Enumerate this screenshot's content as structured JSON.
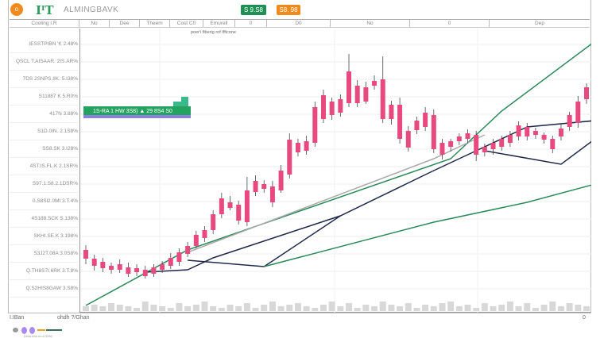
{
  "header": {
    "logo_letter": "o",
    "brand_mark": "IᴵT",
    "brand_name": "ALMINGBAVK",
    "badge_green": "S 9.S8",
    "badge_orange": "S8. 98",
    "colors": {
      "green": "#1e8f55",
      "orange": "#f08a1c"
    }
  },
  "columns": [
    "Cooling I.R",
    "No",
    "Dee",
    "Theem",
    "Cost C0",
    "Emurell",
    "0",
    "D0",
    "No",
    "0",
    "Dep"
  ],
  "subheader": "poer'i fiberig  rof Ifficone",
  "price_labels": [
    "IESSTPIBN 'K 2.48%",
    "QSCL T.AISAAR. 2IS.AR%",
    "7DS 2SNPS.IIK. 5.I38%",
    "S11887 K 5.R0%",
    "417N 3.88%",
    "S1D.0IN. 2.1S8%",
    "SS8.SK 3.I28%",
    "4ST.IS.FL.K 2.1SR%",
    "S97.1.S8.2.1DSR%",
    "0.S8Sl2.0MI 3.T.4%",
    "4S188.SCK S.138%",
    "SKHI.SE.K 3.198%",
    "S3J2T.08A 3.0S8%",
    "Q.TH8S7I.6RK 3.T.8%",
    "Q.S2HIS8GAW 3.S8%"
  ],
  "banner": {
    "text": "1S-RA 1 HW 3S8) ▲ 29 8S4 S0",
    "colors": {
      "bg": "#23a35f",
      "underline": "#8d7ee0"
    }
  },
  "footer": {
    "left": "I.IBan",
    "mid": "ohdh ?/Ghan",
    "right": "0",
    "legend_caption": "Dess Ans no A 3280"
  },
  "legend_colors": [
    "#999999",
    "#a98af0",
    "#a98af0",
    "#f0a020",
    "#3c6e5a",
    "#3c6e5a"
  ],
  "chart_data": {
    "type": "candlestick",
    "up_color": "#e84a7f",
    "wick_color": "#444444",
    "ylim": [
      0,
      350
    ],
    "candles": [
      [
        78,
        67,
        84,
        60
      ],
      [
        67,
        58,
        72,
        52
      ],
      [
        63,
        55,
        68,
        50
      ],
      [
        58,
        53,
        62,
        48
      ],
      [
        60,
        53,
        66,
        49
      ],
      [
        56,
        48,
        62,
        44
      ],
      [
        55,
        50,
        60,
        45
      ],
      [
        53,
        45,
        58,
        42
      ],
      [
        56,
        48,
        60,
        44
      ],
      [
        60,
        53,
        64,
        49
      ],
      [
        68,
        58,
        74,
        54
      ],
      [
        75,
        63,
        80,
        58
      ],
      [
        83,
        73,
        88,
        69
      ],
      [
        97,
        83,
        102,
        80
      ],
      [
        103,
        93,
        108,
        88
      ],
      [
        123,
        103,
        128,
        98
      ],
      [
        143,
        123,
        150,
        118
      ],
      [
        138,
        131,
        146,
        128
      ],
      [
        135,
        115,
        140,
        110
      ],
      [
        153,
        113,
        170,
        108
      ],
      [
        165,
        151,
        172,
        146
      ],
      [
        161,
        155,
        166,
        150
      ],
      [
        158,
        138,
        165,
        132
      ],
      [
        178,
        153,
        185,
        150
      ],
      [
        217,
        173,
        225,
        168
      ],
      [
        213,
        201,
        218,
        196
      ],
      [
        215,
        203,
        222,
        198
      ],
      [
        258,
        213,
        265,
        208
      ],
      [
        273,
        243,
        280,
        238
      ],
      [
        265,
        248,
        270,
        242
      ],
      [
        268,
        251,
        274,
        246
      ],
      [
        303,
        263,
        325,
        258
      ],
      [
        285,
        263,
        292,
        258
      ],
      [
        283,
        265,
        290,
        262
      ],
      [
        291,
        285,
        298,
        280
      ],
      [
        293,
        243,
        322,
        238
      ],
      [
        261,
        243,
        266,
        236
      ],
      [
        261,
        218,
        270,
        212
      ],
      [
        228,
        207,
        234,
        202
      ],
      [
        241,
        229,
        246,
        224
      ],
      [
        251,
        233,
        258,
        228
      ],
      [
        248,
        205,
        255,
        200
      ],
      [
        213,
        198,
        218,
        192
      ],
      [
        215,
        208,
        218,
        202
      ],
      [
        221,
        215,
        225,
        210
      ],
      [
        225,
        218,
        230,
        212
      ],
      [
        223,
        198,
        228,
        190
      ],
      [
        208,
        201,
        212,
        196
      ],
      [
        213,
        205,
        218,
        198
      ],
      [
        218,
        208,
        222,
        203
      ],
      [
        223,
        213,
        228,
        208
      ],
      [
        235,
        221,
        240,
        216
      ],
      [
        233,
        221,
        238,
        216
      ],
      [
        228,
        223,
        232,
        218
      ],
      [
        223,
        217,
        226,
        212
      ],
      [
        218,
        205,
        222,
        200
      ],
      [
        231,
        221,
        236,
        216
      ],
      [
        248,
        233,
        252,
        228
      ],
      [
        265,
        238,
        272,
        232
      ],
      [
        283,
        268,
        288,
        262
      ]
    ],
    "series": [
      {
        "color": "#2a8a5a",
        "points": [
          [
            0,
            8
          ],
          [
            12,
            78
          ],
          [
            43,
            193
          ],
          [
            49,
            253
          ],
          [
            60,
            341
          ]
        ]
      },
      {
        "color": "#1f2a4a",
        "points": [
          [
            7,
            50
          ],
          [
            12,
            53
          ],
          [
            15,
            68
          ],
          [
            30,
            121
          ],
          [
            41,
            178
          ],
          [
            45,
            198
          ],
          [
            52,
            233
          ],
          [
            60,
            241
          ]
        ]
      },
      {
        "color": "#1f2a4a",
        "points": [
          [
            12,
            65
          ],
          [
            21,
            57
          ],
          [
            30,
            121
          ]
        ]
      },
      {
        "color": "#1f2a4a",
        "points": [
          [
            47,
            203
          ],
          [
            56,
            186
          ],
          [
            60,
            218
          ]
        ]
      },
      {
        "color": "#aaaaaa",
        "points": [
          [
            12,
            75
          ],
          [
            41,
            193
          ],
          [
            47,
            223
          ]
        ]
      },
      {
        "color": "#2a8a5a",
        "points": [
          [
            21,
            57
          ],
          [
            41,
            113
          ],
          [
            52,
            138
          ],
          [
            60,
            161
          ]
        ]
      }
    ],
    "volume": [
      3,
      4,
      3,
      5,
      4,
      3,
      2,
      6,
      4,
      3,
      2,
      5,
      3,
      4,
      6,
      3,
      2,
      4,
      3,
      5,
      2,
      4,
      6,
      3,
      4,
      5,
      3,
      2,
      4,
      6,
      3,
      5,
      2,
      4,
      3,
      6,
      4,
      3,
      5,
      2,
      4,
      3,
      5,
      6,
      3,
      4,
      2,
      5,
      3,
      4,
      6,
      3,
      5,
      2,
      4,
      6,
      3,
      5,
      4,
      3
    ]
  }
}
